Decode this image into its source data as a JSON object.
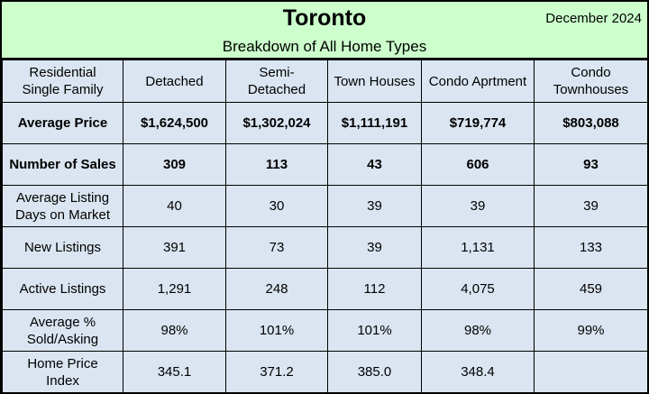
{
  "header": {
    "title": "Toronto",
    "date": "December 2024",
    "subtitle": "Breakdown of All Home Types"
  },
  "table": {
    "columns": [
      [
        "Residential",
        "Single Family"
      ],
      [
        "Detached"
      ],
      [
        "Semi-",
        "Detached"
      ],
      [
        "Town Houses"
      ],
      [
        "Condo Aprtment"
      ],
      [
        "Condo",
        "Townhouses"
      ]
    ],
    "rows": [
      {
        "label": [
          "Average Price"
        ],
        "bold": true,
        "values": [
          "$1,624,500",
          "$1,302,024",
          "$1,111,191",
          "$719,774",
          "$803,088"
        ]
      },
      {
        "label": [
          "Number of Sales"
        ],
        "bold": true,
        "values": [
          "309",
          "113",
          "43",
          "606",
          "93"
        ]
      },
      {
        "label": [
          "Average Listing",
          "Days on Market"
        ],
        "bold": false,
        "values": [
          "40",
          "30",
          "39",
          "39",
          "39"
        ]
      },
      {
        "label": [
          "New Listings"
        ],
        "bold": false,
        "values": [
          "391",
          "73",
          "39",
          "1,131",
          "133"
        ]
      },
      {
        "label": [
          "Active Listings"
        ],
        "bold": false,
        "values": [
          "1,291",
          "248",
          "112",
          "4,075",
          "459"
        ]
      },
      {
        "label": [
          "Average %",
          "Sold/Asking"
        ],
        "bold": false,
        "values": [
          "98%",
          "101%",
          "101%",
          "98%",
          "99%"
        ]
      },
      {
        "label": [
          "Home Price",
          "Index"
        ],
        "bold": false,
        "values": [
          "345.1",
          "371.2",
          "385.0",
          "348.4",
          ""
        ]
      }
    ]
  }
}
